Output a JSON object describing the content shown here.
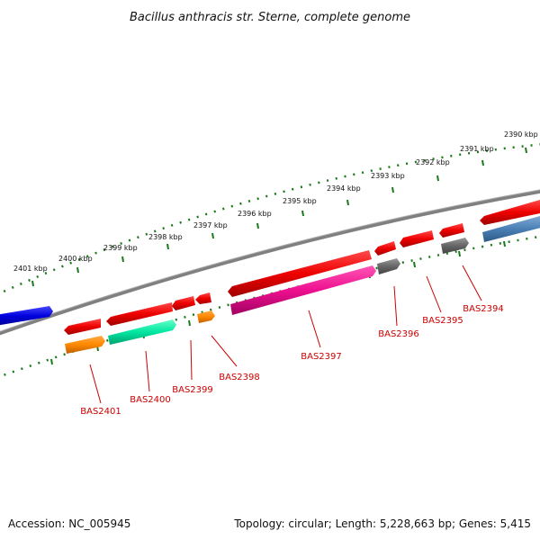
{
  "title": "Bacillus anthracis str. Sterne, complete genome",
  "footer": {
    "accession": "Accession: NC_005945",
    "topology": "Topology: circular; Length: 5,228,663 bp; Genes: 5,415"
  },
  "scale_labels": [
    "2401 kbp",
    "2400 kbp",
    "2399 kbp",
    "2398 kbp",
    "2397 kbp",
    "2396 kbp",
    "2395 kbp",
    "2394 kbp",
    "2393 kbp",
    "2392 kbp",
    "2391 kbp",
    "2390 kbp"
  ],
  "gene_labels": [
    "BAS2401",
    "BAS2400",
    "BAS2399",
    "BAS2398",
    "BAS2397",
    "BAS2396",
    "BAS2395",
    "BAS2394"
  ],
  "colors": {
    "backbone": "#808080",
    "ticks": "#1a7a1a",
    "red": "#ee0000",
    "orange": "#ff8800",
    "green": "#00e6a0",
    "magenta": "#ee1090",
    "gray": "#666666",
    "steel_blue": "#4a7fb5",
    "blue": "#0000dd",
    "label_red": "#cc0000"
  }
}
